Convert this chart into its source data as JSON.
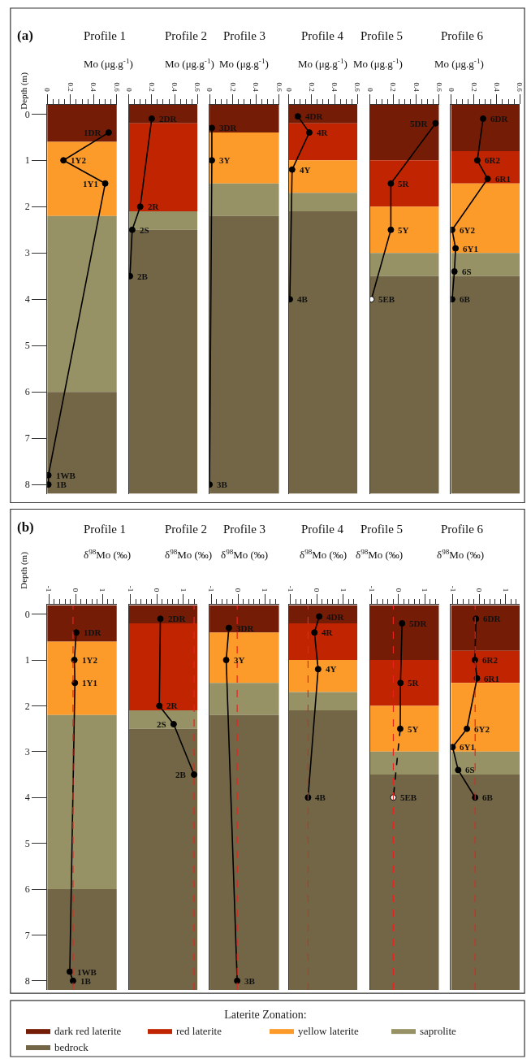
{
  "chart_data": [
    {
      "type": "line",
      "title": "Profile 1",
      "xlabel": "Mo (μg.g$^{-1}$)",
      "ylabel": "Depth (m)",
      "marker": "circle",
      "xlim": [
        0,
        0.6
      ],
      "xticks": [
        0,
        {
          "value": 0.05,
          "label": null
        },
        {
          "value": 0.1,
          "label": null
        },
        {
          "value": 0.15,
          "label": null
        },
        0.2,
        {
          "value": 0.25,
          "label": null
        },
        {
          "value": 0.3,
          "label": null
        },
        {
          "value": 0.35,
          "label": null
        },
        0.4,
        {
          "value": 0.45,
          "label": null
        },
        {
          "value": 0.5,
          "label": null
        },
        {
          "value": 0.55,
          "label": null
        },
        0.6
      ],
      "ylim": [
        8.2,
        -0.2
      ],
      "yticks": [
        0,
        1,
        2,
        3,
        4,
        5,
        6,
        7,
        8
      ],
      "bands": [
        {
          "axis": "y",
          "from": -0.2,
          "to": 0.6,
          "color": "#741c06"
        },
        {
          "axis": "y",
          "from": 0.6,
          "to": 2.2,
          "color": "#fc9a2a"
        },
        {
          "axis": "y",
          "from": 2.2,
          "to": 6.0,
          "color": "#979265"
        },
        {
          "axis": "y",
          "from": 6.0,
          "to": 8.2,
          "color": "#736646"
        }
      ],
      "series": [
        {
          "color": "#000000",
          "x": [
            0.53,
            0.14,
            0.5,
            0.01,
            0.01
          ],
          "values": [
            0.4,
            1.0,
            1.5,
            7.8,
            8.0
          ]
        }
      ],
      "annotations": [
        "(a)",
        {
          "text": "1DR",
          "x": 0.53,
          "y": 0.4
        },
        {
          "text": "1Y2",
          "x": 0.14,
          "y": 1.0
        },
        {
          "text": "1Y1",
          "x": 0.5,
          "y": 1.5
        },
        {
          "text": "1WB",
          "x": 0.01,
          "y": 7.8
        },
        {
          "text": "1B",
          "x": 0.01,
          "y": 8.0
        }
      ]
    },
    {
      "type": "line",
      "title": "Profile 2",
      "xlabel": "Mo (μg.g$^{-1}$)",
      "marker": "circle",
      "tick_labels": "x",
      "xlim": [
        0,
        0.6
      ],
      "xticks": [
        0,
        {
          "value": 0.05,
          "label": null
        },
        {
          "value": 0.1,
          "label": null
        },
        {
          "value": 0.15,
          "label": null
        },
        0.2,
        {
          "value": 0.25,
          "label": null
        },
        {
          "value": 0.3,
          "label": null
        },
        {
          "value": 0.35,
          "label": null
        },
        0.4,
        {
          "value": 0.45,
          "label": null
        },
        {
          "value": 0.5,
          "label": null
        },
        {
          "value": 0.55,
          "label": null
        },
        0.6
      ],
      "ylim": [
        8.2,
        -0.2
      ],
      "bands": [
        {
          "axis": "y",
          "from": -0.2,
          "to": 0.2,
          "color": "#741c06"
        },
        {
          "axis": "y",
          "from": 0.2,
          "to": 2.1,
          "color": "#c02400"
        },
        {
          "axis": "y",
          "from": 2.1,
          "to": 2.5,
          "color": "#979265"
        },
        {
          "axis": "y",
          "from": 2.5,
          "to": 8.2,
          "color": "#736646"
        }
      ],
      "series": [
        {
          "color": "#000000",
          "x": [
            0.2,
            0.1,
            0.03,
            0.01
          ],
          "values": [
            0.1,
            2.0,
            2.5,
            3.5
          ]
        }
      ],
      "annotations": [
        {
          "text": "2DR",
          "x": 0.2,
          "y": 0.1
        },
        {
          "text": "2R",
          "x": 0.1,
          "y": 2.0
        },
        {
          "text": "2S",
          "x": 0.03,
          "y": 2.5
        },
        {
          "text": "2B",
          "x": 0.01,
          "y": 3.5
        }
      ]
    },
    {
      "type": "line",
      "title": "Profile 3",
      "xlabel": "Mo (μg.g$^{-1}$)",
      "marker": "circle",
      "tick_labels": "x",
      "xlim": [
        0,
        0.6
      ],
      "xticks": [
        0,
        {
          "value": 0.05,
          "label": null
        },
        {
          "value": 0.1,
          "label": null
        },
        {
          "value": 0.15,
          "label": null
        },
        0.2,
        {
          "value": 0.25,
          "label": null
        },
        {
          "value": 0.3,
          "label": null
        },
        {
          "value": 0.35,
          "label": null
        },
        0.4,
        {
          "value": 0.45,
          "label": null
        },
        {
          "value": 0.5,
          "label": null
        },
        {
          "value": 0.55,
          "label": null
        },
        0.6
      ],
      "ylim": [
        8.2,
        -0.2
      ],
      "bands": [
        {
          "axis": "y",
          "from": -0.2,
          "to": 0.4,
          "color": "#741c06"
        },
        {
          "axis": "y",
          "from": 0.4,
          "to": 1.5,
          "color": "#fc9a2a"
        },
        {
          "axis": "y",
          "from": 1.5,
          "to": 2.2,
          "color": "#979265"
        },
        {
          "axis": "y",
          "from": 2.2,
          "to": 8.2,
          "color": "#736646"
        }
      ],
      "series": [
        {
          "color": "#000000",
          "x": [
            0.02,
            0.02,
            0.0
          ],
          "values": [
            0.3,
            1.0,
            8.0
          ]
        }
      ],
      "annotations": [
        {
          "text": "3DR",
          "x": 0.02,
          "y": 0.3
        },
        {
          "text": "3Y",
          "x": 0.02,
          "y": 1.0
        },
        {
          "text": "3B",
          "x": 0.0,
          "y": 8.0
        }
      ]
    },
    {
      "type": "line",
      "title": "Profile 4",
      "xlabel": "Mo (μg.g$^{-1}$)",
      "marker": "circle",
      "tick_labels": "x",
      "xlim": [
        0,
        0.6
      ],
      "xticks": [
        0,
        {
          "value": 0.05,
          "label": null
        },
        {
          "value": 0.1,
          "label": null
        },
        {
          "value": 0.15,
          "label": null
        },
        0.2,
        {
          "value": 0.25,
          "label": null
        },
        {
          "value": 0.3,
          "label": null
        },
        {
          "value": 0.35,
          "label": null
        },
        0.4,
        {
          "value": 0.45,
          "label": null
        },
        {
          "value": 0.5,
          "label": null
        },
        {
          "value": 0.55,
          "label": null
        },
        0.6
      ],
      "ylim": [
        8.2,
        -0.2
      ],
      "bands": [
        {
          "axis": "y",
          "from": -0.2,
          "to": 0.2,
          "color": "#741c06"
        },
        {
          "axis": "y",
          "from": 0.2,
          "to": 1.0,
          "color": "#c02400"
        },
        {
          "axis": "y",
          "from": 1.0,
          "to": 1.7,
          "color": "#fc9a2a"
        },
        {
          "axis": "y",
          "from": 1.7,
          "to": 2.1,
          "color": "#979265"
        },
        {
          "axis": "y",
          "from": 2.1,
          "to": 8.2,
          "color": "#736646"
        }
      ],
      "series": [
        {
          "color": "#000000",
          "x": [
            0.08,
            0.18,
            0.03,
            0.01
          ],
          "values": [
            0.05,
            0.4,
            1.2,
            4.0
          ]
        }
      ],
      "annotations": [
        {
          "text": "4DR",
          "x": 0.08,
          "y": 0.05
        },
        {
          "text": "4R",
          "x": 0.18,
          "y": 0.4
        },
        {
          "text": "4Y",
          "x": 0.03,
          "y": 1.2
        },
        {
          "text": "4B",
          "x": 0.01,
          "y": 4.0
        }
      ]
    },
    {
      "type": "line",
      "title": "Profile 5",
      "xlabel": "Mo (μg.g$^{-1}$)",
      "marker": "circle",
      "tick_labels": "x",
      "xlim": [
        0,
        0.6
      ],
      "xticks": [
        0,
        {
          "value": 0.05,
          "label": null
        },
        {
          "value": 0.1,
          "label": null
        },
        {
          "value": 0.15,
          "label": null
        },
        0.2,
        {
          "value": 0.25,
          "label": null
        },
        {
          "value": 0.3,
          "label": null
        },
        {
          "value": 0.35,
          "label": null
        },
        0.4,
        {
          "value": 0.45,
          "label": null
        },
        {
          "value": 0.5,
          "label": null
        },
        {
          "value": 0.55,
          "label": null
        },
        0.6
      ],
      "ylim": [
        8.2,
        -0.2
      ],
      "bands": [
        {
          "axis": "y",
          "from": -0.2,
          "to": 1.0,
          "color": "#741c06"
        },
        {
          "axis": "y",
          "from": 1.0,
          "to": 2.0,
          "color": "#c02400"
        },
        {
          "axis": "y",
          "from": 2.0,
          "to": 3.0,
          "color": "#fc9a2a"
        },
        {
          "axis": "y",
          "from": 3.0,
          "to": 3.5,
          "color": "#979265"
        },
        {
          "axis": "y",
          "from": 3.5,
          "to": 8.2,
          "color": "#736646"
        }
      ],
      "series": [
        {
          "color": "#000000",
          "colors": [
            "#000000",
            "#000000",
            "#000000",
            "#ffffff"
          ],
          "x": [
            0.57,
            0.18,
            0.18,
            0.01
          ],
          "values": [
            0.2,
            1.5,
            2.5,
            4.0
          ]
        }
      ],
      "annotations": [
        {
          "text": "5DR",
          "x": 0.57,
          "y": 0.2
        },
        {
          "text": "5R",
          "x": 0.18,
          "y": 1.5
        },
        {
          "text": "5Y",
          "x": 0.18,
          "y": 2.5
        },
        {
          "text": "5EB",
          "x": 0.01,
          "y": 4.0
        }
      ]
    },
    {
      "type": "line",
      "title": "Profile 6",
      "xlabel": "Mo (μg.g$^{-1}$)",
      "marker": "circle",
      "tick_labels": "x",
      "xlim": [
        0,
        0.6
      ],
      "xticks": [
        0,
        {
          "value": 0.05,
          "label": null
        },
        {
          "value": 0.1,
          "label": null
        },
        {
          "value": 0.15,
          "label": null
        },
        0.2,
        {
          "value": 0.25,
          "label": null
        },
        {
          "value": 0.3,
          "label": null
        },
        {
          "value": 0.35,
          "label": null
        },
        0.4,
        {
          "value": 0.45,
          "label": null
        },
        {
          "value": 0.5,
          "label": null
        },
        {
          "value": 0.55,
          "label": null
        },
        0.6
      ],
      "ylim": [
        8.2,
        -0.2
      ],
      "bands": [
        {
          "axis": "y",
          "from": -0.2,
          "to": 0.8,
          "color": "#741c06"
        },
        {
          "axis": "y",
          "from": 0.8,
          "to": 1.5,
          "color": "#c02400"
        },
        {
          "axis": "y",
          "from": 1.5,
          "to": 3.0,
          "color": "#fc9a2a"
        },
        {
          "axis": "y",
          "from": 3.0,
          "to": 3.5,
          "color": "#979265"
        },
        {
          "axis": "y",
          "from": 3.5,
          "to": 8.2,
          "color": "#736646"
        }
      ],
      "series": [
        {
          "color": "#000000",
          "x": [
            0.28,
            0.23,
            0.32,
            0.01,
            0.04,
            0.03,
            0.01
          ],
          "values": [
            0.1,
            1.0,
            1.4,
            2.5,
            2.9,
            3.4,
            4.0
          ]
        }
      ],
      "annotations": [
        {
          "text": "6DR",
          "x": 0.28,
          "y": 0.1
        },
        {
          "text": "6R2",
          "x": 0.23,
          "y": 1.0
        },
        {
          "text": "6R1",
          "x": 0.32,
          "y": 1.4
        },
        {
          "text": "6Y2",
          "x": 0.01,
          "y": 2.5
        },
        {
          "text": "6Y1",
          "x": 0.04,
          "y": 2.9
        },
        {
          "text": "6S",
          "x": 0.03,
          "y": 3.4
        },
        {
          "text": "6B",
          "x": 0.01,
          "y": 4.0
        }
      ]
    },
    {
      "type": "line",
      "title": "Profile 1",
      "xlabel": "δ$^{98}$Mo (‰)",
      "ylabel": "Depth (m)",
      "marker": "circle",
      "xlim": [
        -1.06,
        1.53
      ],
      "xticks": [
        -1,
        {
          "value": -0.8,
          "label": null
        },
        {
          "value": -0.6,
          "label": null
        },
        {
          "value": -0.4,
          "label": null
        },
        {
          "value": -0.2,
          "label": null
        },
        0,
        {
          "value": 0.2,
          "label": null
        },
        {
          "value": 0.4,
          "label": null
        },
        {
          "value": 0.6,
          "label": null
        },
        {
          "value": 0.8,
          "label": null
        },
        1,
        {
          "value": 1.2,
          "label": null
        },
        {
          "value": 1.4,
          "label": null
        }
      ],
      "ylim": [
        8.2,
        -0.2
      ],
      "yticks": [
        0,
        1,
        2,
        3,
        4,
        5,
        6,
        7,
        8
      ],
      "bands": [
        {
          "axis": "y",
          "from": -0.2,
          "to": 0.6,
          "color": "#741c06"
        },
        {
          "axis": "y",
          "from": 0.6,
          "to": 2.2,
          "color": "#fc9a2a"
        },
        {
          "axis": "y",
          "from": 2.2,
          "to": 6.0,
          "color": "#979265"
        },
        {
          "axis": "y",
          "from": 6.0,
          "to": 8.2,
          "color": "#736646"
        }
      ],
      "ref_lines": [
        {
          "axis": "x",
          "value": -0.1,
          "color": "#e8231f",
          "line_style": "dashed"
        }
      ],
      "series": [
        {
          "color": "#000000",
          "x": [
            0.02,
            -0.05,
            -0.03,
            -0.22,
            -0.1
          ],
          "values": [
            0.4,
            1.0,
            1.5,
            7.8,
            8.0
          ]
        }
      ],
      "annotations": [
        "(b)",
        {
          "text": "1DR",
          "x": 0.02,
          "y": 0.4
        },
        {
          "text": "1Y2",
          "x": -0.05,
          "y": 1.0
        },
        {
          "text": "1Y1",
          "x": -0.03,
          "y": 1.5
        },
        {
          "text": "1WB",
          "x": -0.22,
          "y": 7.8
        },
        {
          "text": "1B",
          "x": -0.1,
          "y": 8.0
        }
      ]
    },
    {
      "type": "line",
      "title": "Profile 2",
      "xlabel": "δ$^{98}$Mo (‰)",
      "marker": "circle",
      "tick_labels": "x",
      "xlim": [
        -1.06,
        1.53
      ],
      "xticks": [
        -1,
        {
          "value": -0.8,
          "label": null
        },
        {
          "value": -0.6,
          "label": null
        },
        {
          "value": -0.4,
          "label": null
        },
        {
          "value": -0.2,
          "label": null
        },
        0,
        {
          "value": 0.2,
          "label": null
        },
        {
          "value": 0.4,
          "label": null
        },
        {
          "value": 0.6,
          "label": null
        },
        {
          "value": 0.8,
          "label": null
        },
        1,
        {
          "value": 1.2,
          "label": null
        },
        {
          "value": 1.4,
          "label": null
        }
      ],
      "ylim": [
        8.2,
        -0.2
      ],
      "bands": [
        {
          "axis": "y",
          "from": -0.2,
          "to": 0.2,
          "color": "#741c06"
        },
        {
          "axis": "y",
          "from": 0.2,
          "to": 2.1,
          "color": "#c02400"
        },
        {
          "axis": "y",
          "from": 2.1,
          "to": 2.5,
          "color": "#979265"
        },
        {
          "axis": "y",
          "from": 2.5,
          "to": 8.2,
          "color": "#736646"
        }
      ],
      "ref_lines": [
        {
          "axis": "x",
          "value": 1.4,
          "color": "#e8231f",
          "line_style": "dashed"
        }
      ],
      "series": [
        {
          "color": "#000000",
          "x": [
            0.13,
            0.09,
            0.63,
            1.4
          ],
          "values": [
            0.1,
            2.0,
            2.4,
            3.5
          ]
        }
      ],
      "annotations": [
        {
          "text": "2DR",
          "x": 0.13,
          "y": 0.1
        },
        {
          "text": "2R",
          "x": 0.09,
          "y": 2.0
        },
        {
          "text": "2S",
          "x": 0.63,
          "y": 2.4
        },
        {
          "text": "2B",
          "x": 1.4,
          "y": 3.5
        }
      ]
    },
    {
      "type": "line",
      "title": "Profile 3",
      "xlabel": "δ$^{98}$Mo (‰)",
      "marker": "circle",
      "tick_labels": "x",
      "xlim": [
        -1.06,
        1.53
      ],
      "xticks": [
        -1,
        {
          "value": -0.8,
          "label": null
        },
        {
          "value": -0.6,
          "label": null
        },
        {
          "value": -0.4,
          "label": null
        },
        {
          "value": -0.2,
          "label": null
        },
        0,
        {
          "value": 0.2,
          "label": null
        },
        {
          "value": 0.4,
          "label": null
        },
        {
          "value": 0.6,
          "label": null
        },
        {
          "value": 0.8,
          "label": null
        },
        1,
        {
          "value": 1.2,
          "label": null
        },
        {
          "value": 1.4,
          "label": null
        }
      ],
      "ylim": [
        8.2,
        -0.2
      ],
      "bands": [
        {
          "axis": "y",
          "from": -0.2,
          "to": 0.4,
          "color": "#741c06"
        },
        {
          "axis": "y",
          "from": 0.4,
          "to": 1.5,
          "color": "#fc9a2a"
        },
        {
          "axis": "y",
          "from": 1.5,
          "to": 2.2,
          "color": "#979265"
        },
        {
          "axis": "y",
          "from": 2.2,
          "to": 8.2,
          "color": "#736646"
        }
      ],
      "ref_lines": [
        {
          "axis": "x",
          "value": -0.03,
          "color": "#e8231f",
          "line_style": "dashed"
        }
      ],
      "series": [
        {
          "color": "#000000",
          "x": [
            -0.34,
            -0.44,
            -0.03
          ],
          "values": [
            0.3,
            1.0,
            8.0
          ]
        }
      ],
      "annotations": [
        {
          "text": "3DR",
          "x": -0.34,
          "y": 0.3
        },
        {
          "text": "3Y",
          "x": -0.44,
          "y": 1.0
        },
        {
          "text": "3B",
          "x": -0.03,
          "y": 8.0
        }
      ]
    },
    {
      "type": "line",
      "title": "Profile 4",
      "xlabel": "δ$^{98}$Mo (‰)",
      "marker": "circle",
      "tick_labels": "x",
      "xlim": [
        -1.06,
        1.53
      ],
      "xticks": [
        -1,
        {
          "value": -0.8,
          "label": null
        },
        {
          "value": -0.6,
          "label": null
        },
        {
          "value": -0.4,
          "label": null
        },
        {
          "value": -0.2,
          "label": null
        },
        0,
        {
          "value": 0.2,
          "label": null
        },
        {
          "value": 0.4,
          "label": null
        },
        {
          "value": 0.6,
          "label": null
        },
        {
          "value": 0.8,
          "label": null
        },
        1,
        {
          "value": 1.2,
          "label": null
        },
        {
          "value": 1.4,
          "label": null
        }
      ],
      "ylim": [
        8.2,
        -0.2
      ],
      "bands": [
        {
          "axis": "y",
          "from": -0.2,
          "to": 0.2,
          "color": "#741c06"
        },
        {
          "axis": "y",
          "from": 0.2,
          "to": 1.0,
          "color": "#c02400"
        },
        {
          "axis": "y",
          "from": 1.0,
          "to": 1.7,
          "color": "#fc9a2a"
        },
        {
          "axis": "y",
          "from": 1.7,
          "to": 2.1,
          "color": "#979265"
        },
        {
          "axis": "y",
          "from": 2.1,
          "to": 8.2,
          "color": "#736646"
        }
      ],
      "ref_lines": [
        {
          "axis": "x",
          "value": -0.33,
          "color": "#e8231f",
          "line_style": "dashed"
        }
      ],
      "series": [
        {
          "color": "#000000",
          "x": [
            0.09,
            -0.09,
            0.05,
            -0.33
          ],
          "values": [
            0.05,
            0.4,
            1.2,
            4.0
          ]
        }
      ],
      "annotations": [
        {
          "text": "4DR",
          "x": 0.09,
          "y": 0.05
        },
        {
          "text": "4R",
          "x": -0.09,
          "y": 0.4
        },
        {
          "text": "4Y",
          "x": 0.05,
          "y": 1.2
        },
        {
          "text": "4B",
          "x": -0.33,
          "y": 4.0
        }
      ]
    },
    {
      "type": "line",
      "title": "Profile 5",
      "xlabel": "δ$^{98}$Mo (‰)",
      "marker": "circle",
      "tick_labels": "x",
      "xlim": [
        -1.06,
        1.53
      ],
      "xticks": [
        -1,
        {
          "value": -0.8,
          "label": null
        },
        {
          "value": -0.6,
          "label": null
        },
        {
          "value": -0.4,
          "label": null
        },
        {
          "value": -0.2,
          "label": null
        },
        0,
        {
          "value": 0.2,
          "label": null
        },
        {
          "value": 0.4,
          "label": null
        },
        {
          "value": 0.6,
          "label": null
        },
        {
          "value": 0.8,
          "label": null
        },
        1,
        {
          "value": 1.2,
          "label": null
        },
        {
          "value": 1.4,
          "label": null
        }
      ],
      "ylim": [
        8.2,
        -0.2
      ],
      "bands": [
        {
          "axis": "y",
          "from": -0.2,
          "to": 1.0,
          "color": "#741c06"
        },
        {
          "axis": "y",
          "from": 1.0,
          "to": 2.0,
          "color": "#c02400"
        },
        {
          "axis": "y",
          "from": 2.0,
          "to": 3.0,
          "color": "#fc9a2a"
        },
        {
          "axis": "y",
          "from": 3.0,
          "to": 3.5,
          "color": "#979265"
        },
        {
          "axis": "y",
          "from": 3.5,
          "to": 8.2,
          "color": "#736646"
        }
      ],
      "ref_lines": [
        {
          "axis": "x",
          "value": -0.19,
          "color": "#e8231f",
          "line_style": "dashed"
        }
      ],
      "series": [
        {
          "color": "#000000",
          "x": [
            0.14,
            0.08,
            0.07
          ],
          "values": [
            0.2,
            1.5,
            2.5
          ]
        },
        {
          "type": "line",
          "color": "#000000",
          "marker": "none",
          "line_style": "dashed",
          "x": [
            0.07,
            -0.19
          ],
          "values": [
            2.5,
            4.0
          ]
        },
        {
          "type": "scatter",
          "color": "#ffffff",
          "x": [
            -0.19
          ],
          "values": [
            4.0
          ]
        }
      ],
      "annotations": [
        {
          "text": "5DR",
          "x": 0.14,
          "y": 0.2
        },
        {
          "text": "5R",
          "x": 0.08,
          "y": 1.5
        },
        {
          "text": "5Y",
          "x": 0.07,
          "y": 2.5
        },
        {
          "text": "5EB",
          "x": -0.19,
          "y": 4.0
        }
      ]
    },
    {
      "type": "line",
      "title": "Profile 6",
      "xlabel": "δ$^{98}$Mo (‰)",
      "marker": "circle",
      "tick_labels": "x",
      "legend": "bottom",
      "legend_title": "Laterite Zonation:",
      "xlim": [
        -1.06,
        1.53
      ],
      "xticks": [
        -1,
        {
          "value": -0.8,
          "label": null
        },
        {
          "value": -0.6,
          "label": null
        },
        {
          "value": -0.4,
          "label": null
        },
        {
          "value": -0.2,
          "label": null
        },
        0,
        {
          "value": 0.2,
          "label": null
        },
        {
          "value": 0.4,
          "label": null
        },
        {
          "value": 0.6,
          "label": null
        },
        {
          "value": 0.8,
          "label": null
        },
        1,
        {
          "value": 1.2,
          "label": null
        },
        {
          "value": 1.4,
          "label": null
        }
      ],
      "ylim": [
        8.2,
        -0.2
      ],
      "bands": [
        {
          "axis": "y",
          "from": -0.2,
          "to": 0.8,
          "color": "#741c06",
          "label": "dark red laterite"
        },
        {
          "axis": "y",
          "from": 0.8,
          "to": 1.5,
          "color": "#c02400",
          "label": "red laterite"
        },
        {
          "axis": "y",
          "from": 1.5,
          "to": 3.0,
          "color": "#fc9a2a",
          "label": "yellow laterite"
        },
        {
          "axis": "y",
          "from": 3.0,
          "to": 3.5,
          "color": "#979265",
          "label": "saprolite"
        },
        {
          "axis": "y",
          "from": 3.5,
          "to": 8.2,
          "color": "#736646",
          "label": "bedrock"
        }
      ],
      "ref_lines": [
        {
          "axis": "x",
          "value": -0.15,
          "color": "#e8231f",
          "line_style": "dashed"
        }
      ],
      "series": [
        {
          "color": "#000000",
          "x": [
            -0.12,
            -0.16,
            -0.08,
            -0.46,
            -1.0,
            -0.79,
            -0.15
          ],
          "values": [
            0.1,
            1.0,
            1.4,
            2.5,
            2.9,
            3.4,
            4.0
          ]
        }
      ],
      "annotations": [
        {
          "text": "6DR",
          "x": -0.12,
          "y": 0.1
        },
        {
          "text": "6R2",
          "x": -0.16,
          "y": 1.0
        },
        {
          "text": "6R1",
          "x": -0.08,
          "y": 1.4
        },
        {
          "text": "6Y2",
          "x": -0.46,
          "y": 2.5
        },
        {
          "text": "6Y1",
          "x": -1.0,
          "y": 2.9
        },
        {
          "text": "6S",
          "x": -0.79,
          "y": 3.4
        },
        {
          "text": "6B",
          "x": -0.15,
          "y": 4.0
        }
      ]
    }
  ]
}
